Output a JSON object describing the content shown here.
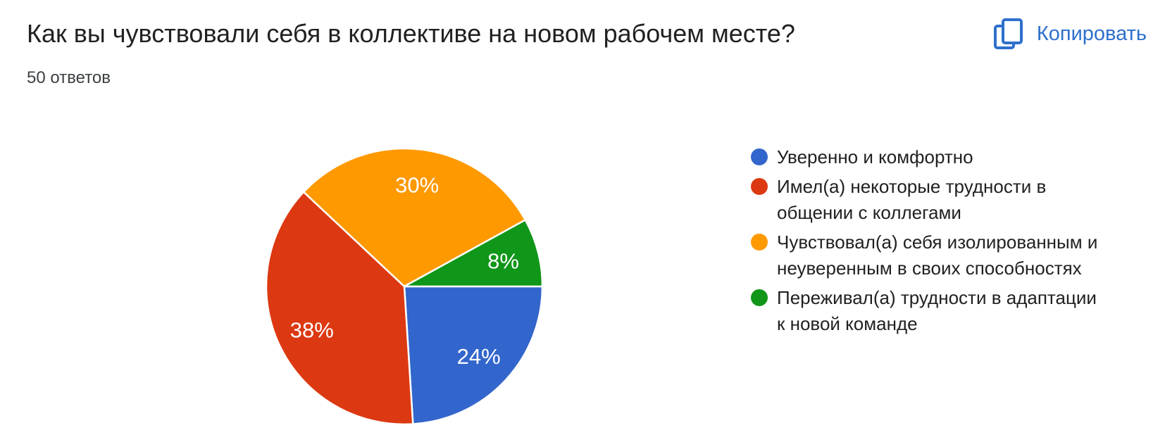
{
  "copy_button": {
    "label": "Копировать",
    "color": "#2e70cc"
  },
  "chart_data": {
    "type": "pie",
    "title": "Как вы чувствовали себя в коллективе на новом рабочем месте?",
    "subtitle": "50 ответов",
    "total_responses": 50,
    "legend_position": "right",
    "start_angle": "3-oclock",
    "direction": "clockwise",
    "slice_border_color": "#ffffff",
    "data_label_color": "#ffffff",
    "slices": [
      {
        "label": "Уверенно и комфортно",
        "label_wrapped": "Уверенно и комфортно",
        "pct": 24,
        "pct_label": "24%",
        "color": "#3366CC"
      },
      {
        "label": "Имел(а) некоторые трудности в общении с коллегами",
        "label_wrapped": "Имел(а) некоторые трудности в\nобщении с коллегами",
        "pct": 38,
        "pct_label": "38%",
        "color": "#DC3912"
      },
      {
        "label": "Чувствовал(а) себя изолированным и неуверенным в своих способностях",
        "label_wrapped": "Чувствовал(а) себя изолированным и\nнеуверенным в своих способностях",
        "pct": 30,
        "pct_label": "30%",
        "color": "#FF9900"
      },
      {
        "label": "Переживал(а) трудности в адаптации к новой команде",
        "label_wrapped": "Переживал(а) трудности в адаптации\nк новой команде",
        "pct": 8,
        "pct_label": "8%",
        "color": "#109618"
      }
    ]
  }
}
